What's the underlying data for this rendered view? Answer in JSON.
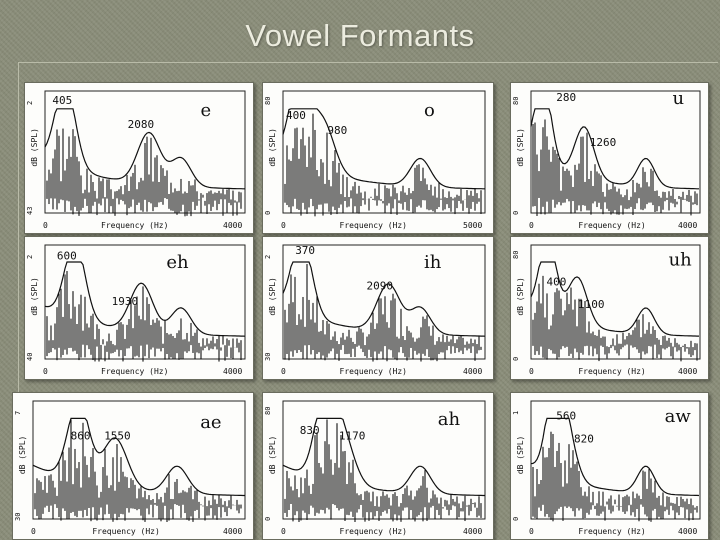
{
  "title": "Vowel Formants",
  "colors": {
    "background": "#8a8d79",
    "panel": "#fdfdfb",
    "ink": "#111111",
    "title": "#ececdf"
  },
  "chart_data": [
    {
      "type": "line",
      "vowel": "e",
      "formants": [
        405,
        2080
      ],
      "xlabel": "Frequency (Hz)",
      "ylabel": "dB (SPL)",
      "xlim": [
        0,
        4000
      ],
      "x_ticks": [
        "0",
        "4000"
      ],
      "y_ticks": [
        "2",
        "43"
      ]
    },
    {
      "type": "line",
      "vowel": "o",
      "formants": [
        400,
        980
      ],
      "xlabel": "Frequency (Hz)",
      "ylabel": "dB (SPL)",
      "xlim": [
        0,
        5000
      ],
      "x_ticks": [
        "0",
        "5000"
      ],
      "y_ticks": [
        "80",
        "0"
      ]
    },
    {
      "type": "line",
      "vowel": "u",
      "formants": [
        280,
        1260
      ],
      "xlabel": "Frequency (Hz)",
      "ylabel": "dB (SPL)",
      "xlim": [
        0,
        4000
      ],
      "x_ticks": [
        "0",
        "4000"
      ],
      "y_ticks": [
        "80",
        "0"
      ]
    },
    {
      "type": "line",
      "vowel": "eh",
      "formants": [
        600,
        1930
      ],
      "xlabel": "Frequency (Hz)",
      "ylabel": "dB (SPL)",
      "xlim": [
        0,
        4000
      ],
      "x_ticks": [
        "0",
        "4000"
      ],
      "y_ticks": [
        "2",
        "40"
      ]
    },
    {
      "type": "line",
      "vowel": "ih",
      "formants": [
        370,
        2090
      ],
      "xlabel": "Frequency (Hz)",
      "ylabel": "dB (SPL)",
      "xlim": [
        0,
        4000
      ],
      "x_ticks": [
        "0",
        "4000"
      ],
      "y_ticks": [
        "2",
        "30"
      ]
    },
    {
      "type": "line",
      "vowel": "uh",
      "formants": [
        400,
        1100
      ],
      "xlabel": "Frequency (Hz)",
      "ylabel": "dB (SPL)",
      "xlim": [
        0,
        4000
      ],
      "x_ticks": [
        "0",
        "4000"
      ],
      "y_ticks": [
        "80",
        "0"
      ]
    },
    {
      "type": "line",
      "vowel": "ae",
      "formants": [
        860,
        1550
      ],
      "xlabel": "Frequency (Hz)",
      "ylabel": "dB (SPL)",
      "xlim": [
        0,
        4000
      ],
      "x_ticks": [
        "0",
        "4000"
      ],
      "y_ticks": [
        "7",
        "30"
      ]
    },
    {
      "type": "line",
      "vowel": "ah",
      "formants": [
        830,
        1170
      ],
      "xlabel": "Frequency (Hz)",
      "ylabel": "dB (SPL)",
      "xlim": [
        0,
        4000
      ],
      "x_ticks": [
        "0",
        "4000"
      ],
      "y_ticks": [
        "80",
        "0"
      ]
    },
    {
      "type": "line",
      "vowel": "aw",
      "formants": [
        560,
        820
      ],
      "xlabel": "Frequency (Hz)",
      "ylabel": "dB (SPL)",
      "xlim": [
        0,
        4000
      ],
      "x_ticks": [
        "0",
        "4000"
      ],
      "y_ticks": [
        "1",
        "0"
      ]
    }
  ]
}
